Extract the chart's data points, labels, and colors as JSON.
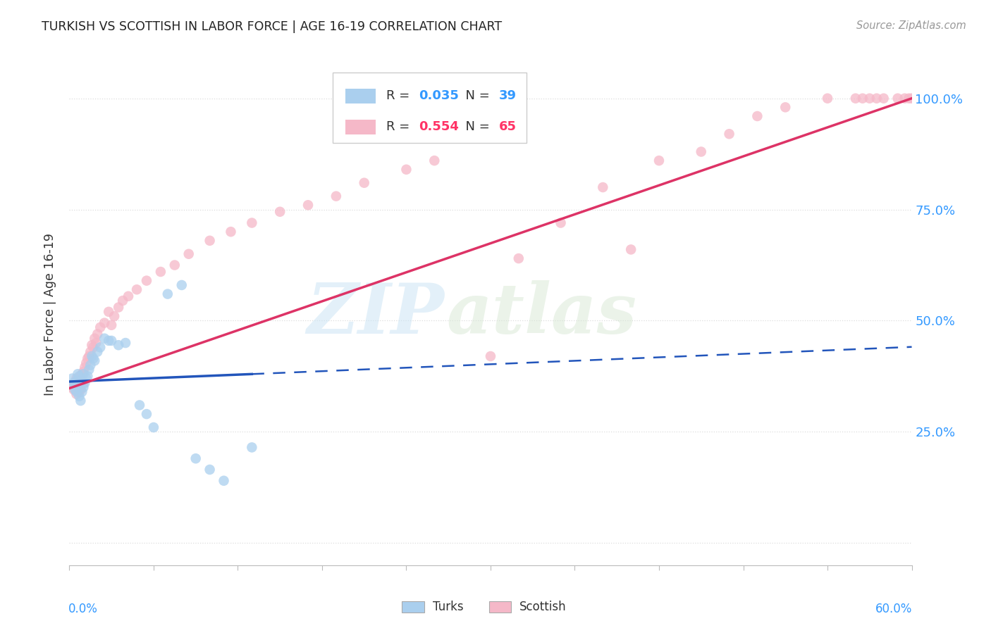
{
  "title": "TURKISH VS SCOTTISH IN LABOR FORCE | AGE 16-19 CORRELATION CHART",
  "source": "Source: ZipAtlas.com",
  "ylabel": "In Labor Force | Age 16-19",
  "xlim": [
    0.0,
    0.6
  ],
  "ylim": [
    -0.05,
    1.08
  ],
  "yticks": [
    0.0,
    0.25,
    0.5,
    0.75,
    1.0
  ],
  "ytick_labels": [
    "",
    "25.0%",
    "50.0%",
    "75.0%",
    "100.0%"
  ],
  "xtick_left": "0.0%",
  "xtick_right": "60.0%",
  "watermark_zip": "ZIP",
  "watermark_atlas": "atlas",
  "turks_R": 0.035,
  "turks_N": 39,
  "scottish_R": 0.554,
  "scottish_N": 65,
  "turks_dot_color": "#aacfee",
  "scottish_dot_color": "#f5b8c8",
  "turks_line_color": "#2255bb",
  "scottish_line_color": "#dd3366",
  "legend_blue": "#3399ff",
  "legend_pink": "#ff3366",
  "turks_x": [
    0.002,
    0.003,
    0.004,
    0.004,
    0.005,
    0.005,
    0.006,
    0.006,
    0.007,
    0.007,
    0.008,
    0.008,
    0.009,
    0.01,
    0.01,
    0.011,
    0.012,
    0.013,
    0.014,
    0.015,
    0.016,
    0.017,
    0.018,
    0.02,
    0.022,
    0.025,
    0.028,
    0.03,
    0.035,
    0.04,
    0.05,
    0.055,
    0.06,
    0.07,
    0.08,
    0.09,
    0.1,
    0.11,
    0.13
  ],
  "turks_y": [
    0.37,
    0.36,
    0.355,
    0.345,
    0.365,
    0.34,
    0.38,
    0.35,
    0.375,
    0.33,
    0.36,
    0.32,
    0.34,
    0.38,
    0.35,
    0.36,
    0.37,
    0.375,
    0.39,
    0.4,
    0.42,
    0.415,
    0.41,
    0.43,
    0.44,
    0.46,
    0.455,
    0.455,
    0.445,
    0.45,
    0.31,
    0.29,
    0.26,
    0.56,
    0.58,
    0.19,
    0.165,
    0.14,
    0.215
  ],
  "scottish_x": [
    0.002,
    0.003,
    0.004,
    0.005,
    0.005,
    0.006,
    0.007,
    0.007,
    0.008,
    0.008,
    0.009,
    0.01,
    0.01,
    0.011,
    0.012,
    0.013,
    0.014,
    0.015,
    0.016,
    0.017,
    0.018,
    0.019,
    0.02,
    0.022,
    0.025,
    0.028,
    0.03,
    0.032,
    0.035,
    0.038,
    0.042,
    0.048,
    0.055,
    0.065,
    0.075,
    0.085,
    0.1,
    0.115,
    0.13,
    0.15,
    0.17,
    0.19,
    0.21,
    0.24,
    0.26,
    0.3,
    0.32,
    0.35,
    0.38,
    0.4,
    0.42,
    0.45,
    0.47,
    0.49,
    0.51,
    0.54,
    0.56,
    0.565,
    0.57,
    0.575,
    0.58,
    0.59,
    0.595,
    0.598,
    0.6
  ],
  "scottish_y": [
    0.35,
    0.345,
    0.36,
    0.37,
    0.335,
    0.355,
    0.365,
    0.34,
    0.375,
    0.345,
    0.38,
    0.385,
    0.36,
    0.395,
    0.405,
    0.415,
    0.42,
    0.43,
    0.445,
    0.44,
    0.46,
    0.45,
    0.47,
    0.485,
    0.495,
    0.52,
    0.49,
    0.51,
    0.53,
    0.545,
    0.555,
    0.57,
    0.59,
    0.61,
    0.625,
    0.65,
    0.68,
    0.7,
    0.72,
    0.745,
    0.76,
    0.78,
    0.81,
    0.84,
    0.86,
    0.42,
    0.64,
    0.72,
    0.8,
    0.66,
    0.86,
    0.88,
    0.92,
    0.96,
    0.98,
    1.0,
    1.0,
    1.0,
    1.0,
    1.0,
    1.0,
    1.0,
    1.0,
    1.0,
    1.0
  ]
}
